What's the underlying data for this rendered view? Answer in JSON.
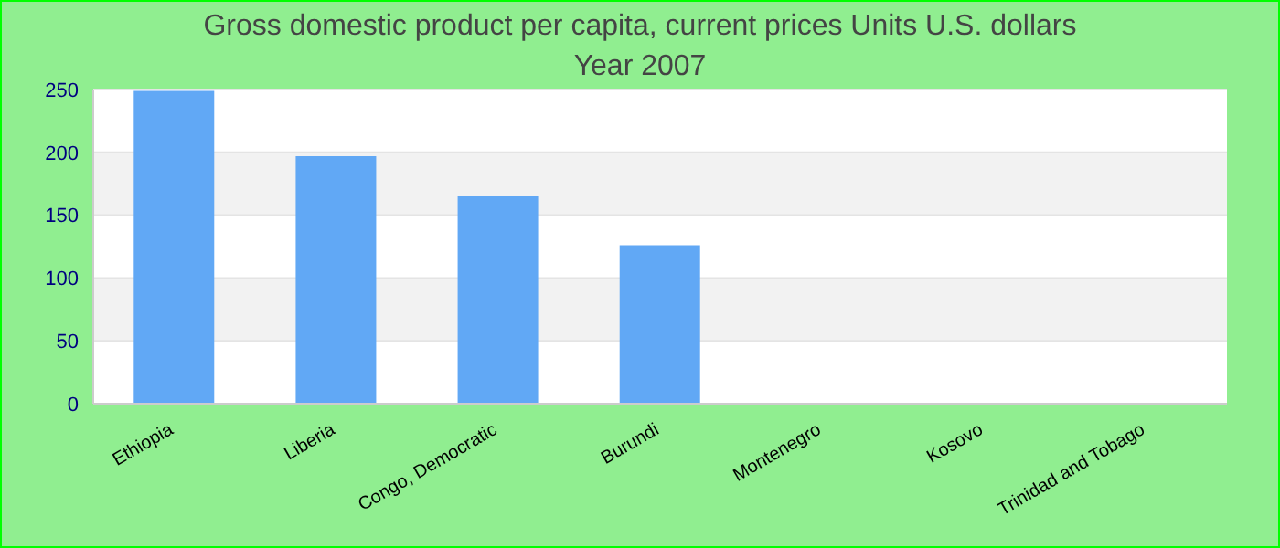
{
  "chart_data": {
    "type": "bar",
    "title": "Gross domestic product per capita, current prices Units U.S. dollars",
    "subtitle": "Year 2007",
    "categories": [
      "Ethiopia",
      "Liberia",
      "Congo, Democratic",
      "Burundi",
      "Montenegro",
      "Kosovo",
      "Trinidad and Tobago"
    ],
    "values": [
      249,
      197,
      165,
      126,
      null,
      null,
      null
    ],
    "color": "#61a8f5",
    "ylim": [
      0,
      250
    ],
    "yticks": [
      0,
      50,
      100,
      150,
      200,
      250
    ],
    "grid": "y",
    "legend": false
  }
}
